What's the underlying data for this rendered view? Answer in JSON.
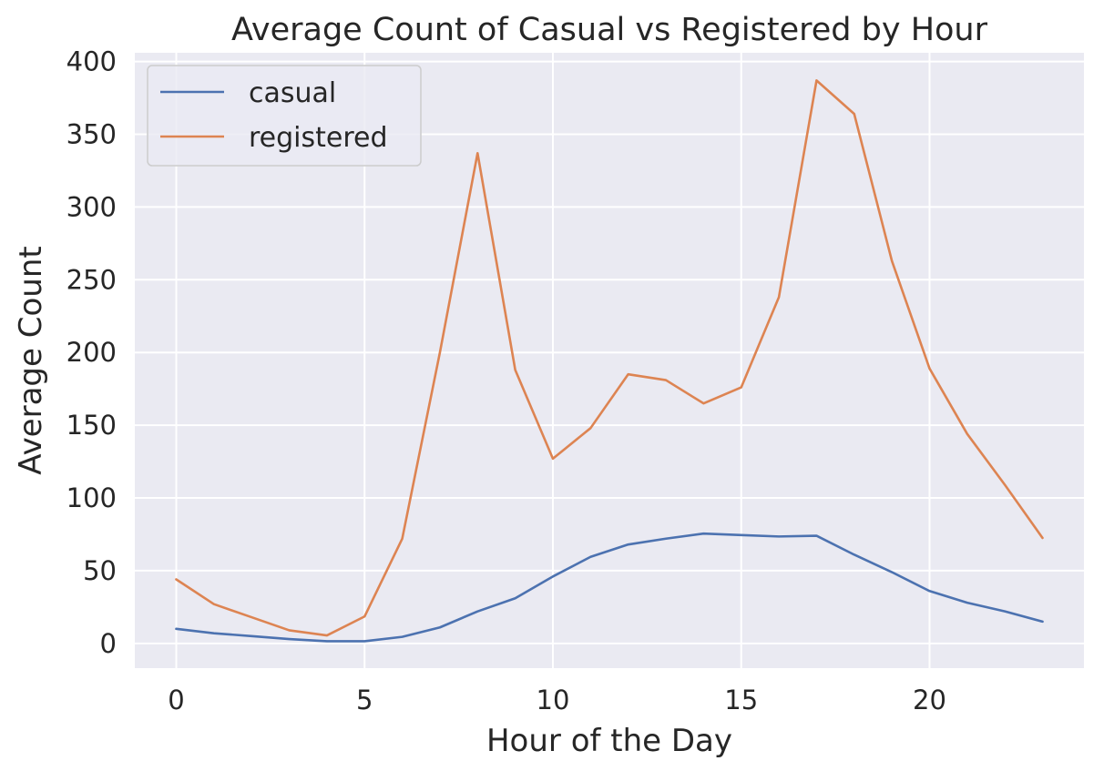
{
  "chart_data": {
    "type": "line",
    "title": "Average Count of Casual vs Registered by Hour",
    "xlabel": "Hour of the Day",
    "ylabel": "Average Count",
    "xlim": [
      -1.1,
      24.1
    ],
    "ylim": [
      -17,
      406
    ],
    "xticks": [
      0,
      5,
      10,
      15,
      20
    ],
    "yticks": [
      0,
      50,
      100,
      150,
      200,
      250,
      300,
      350,
      400
    ],
    "grid": true,
    "legend_position": "top-left",
    "background_color": "#eaeaf2",
    "grid_color": "#ffffff",
    "x": [
      0,
      1,
      2,
      3,
      4,
      5,
      6,
      7,
      8,
      9,
      10,
      11,
      12,
      13,
      14,
      15,
      16,
      17,
      18,
      19,
      20,
      21,
      22,
      23
    ],
    "series": [
      {
        "name": "casual",
        "color": "#4c72b0",
        "values": [
          10,
          7,
          5,
          3,
          1.5,
          1.5,
          4.5,
          11,
          22,
          31,
          46,
          59.5,
          68,
          72,
          75.5,
          74.5,
          73.5,
          74,
          61,
          49,
          36,
          28,
          22,
          15
        ]
      },
      {
        "name": "registered",
        "color": "#dd8452",
        "values": [
          44,
          27,
          18,
          9,
          5.5,
          18.5,
          72,
          200,
          337,
          188,
          127,
          148,
          185,
          181,
          165,
          176,
          238,
          387,
          364,
          263,
          189,
          144,
          109,
          72.5
        ]
      }
    ]
  }
}
